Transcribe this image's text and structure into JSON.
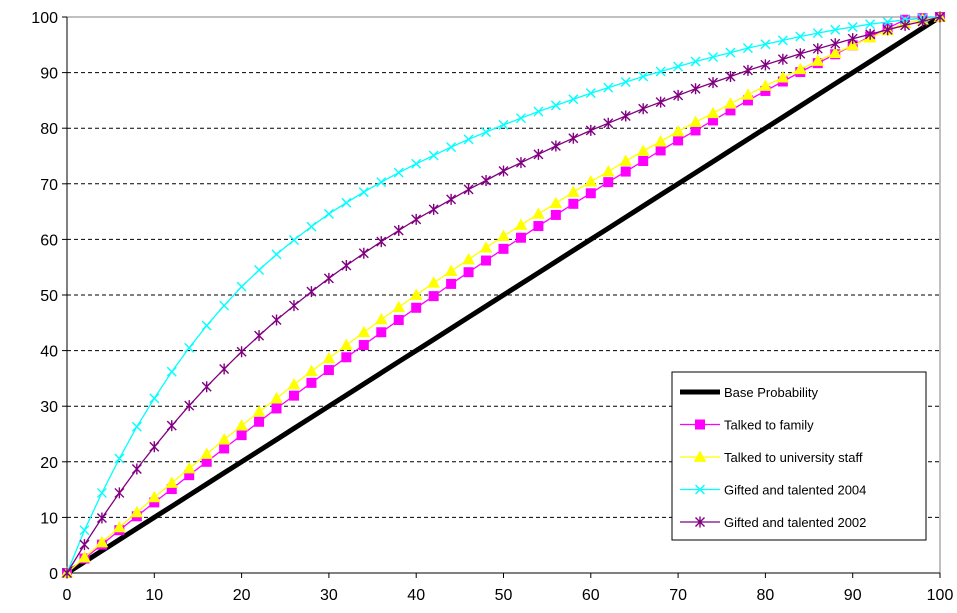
{
  "chart_data": {
    "type": "line",
    "title": "",
    "xlabel": "",
    "ylabel": "",
    "xlim": [
      0,
      100
    ],
    "ylim": [
      0,
      100
    ],
    "x_ticks": [
      0,
      10,
      20,
      30,
      40,
      50,
      60,
      70,
      80,
      90,
      100
    ],
    "y_ticks": [
      0,
      10,
      20,
      30,
      40,
      50,
      60,
      70,
      80,
      90,
      100
    ],
    "grid": "horizontal dashed",
    "legend_position": "bottom-right",
    "x": [
      0,
      2,
      4,
      6,
      8,
      10,
      12,
      14,
      16,
      18,
      20,
      22,
      24,
      26,
      28,
      30,
      32,
      34,
      36,
      38,
      40,
      42,
      44,
      46,
      48,
      50,
      52,
      54,
      56,
      58,
      60,
      62,
      64,
      66,
      68,
      70,
      72,
      74,
      76,
      78,
      80,
      82,
      84,
      86,
      88,
      90,
      92,
      94,
      96,
      98,
      100
    ],
    "series": [
      {
        "name": "Base Probability",
        "color": "#000000",
        "marker": "none",
        "values": [
          0,
          2,
          4,
          6,
          8,
          10,
          12,
          14,
          16,
          18,
          20,
          22,
          24,
          26,
          28,
          30,
          32,
          34,
          36,
          38,
          40,
          42,
          44,
          46,
          48,
          50,
          52,
          54,
          56,
          58,
          60,
          62,
          64,
          66,
          68,
          70,
          72,
          74,
          76,
          78,
          80,
          82,
          84,
          86,
          88,
          90,
          92,
          94,
          96,
          98,
          100
        ]
      },
      {
        "name": "Talked to family",
        "color": "#FF00FF",
        "marker": "square",
        "values": [
          0,
          2.6,
          5.1,
          7.7,
          10.2,
          12.7,
          15.1,
          17.6,
          20.0,
          22.4,
          24.8,
          27.2,
          29.6,
          31.9,
          34.2,
          36.5,
          38.8,
          41.0,
          43.3,
          45.5,
          47.7,
          49.8,
          52.0,
          54.1,
          56.2,
          58.3,
          60.3,
          62.4,
          64.4,
          66.4,
          68.3,
          70.3,
          72.2,
          74.1,
          76.0,
          77.8,
          79.6,
          81.4,
          83.2,
          85.0,
          86.7,
          88.4,
          90.1,
          91.7,
          93.3,
          94.9,
          96.5,
          98.0,
          99.5,
          99.8,
          100
        ]
      },
      {
        "name": "Talked to university staff",
        "color": "#FFFF00",
        "marker": "triangle",
        "values": [
          0,
          2.8,
          5.5,
          8.2,
          10.9,
          13.6,
          16.2,
          18.8,
          21.4,
          24.0,
          26.5,
          29.0,
          31.4,
          33.9,
          36.3,
          38.6,
          41.0,
          43.3,
          45.6,
          47.8,
          50.0,
          52.2,
          54.3,
          56.4,
          58.5,
          60.6,
          62.6,
          64.6,
          66.5,
          68.5,
          70.4,
          72.2,
          74.1,
          75.9,
          77.6,
          79.4,
          81.1,
          82.7,
          84.4,
          86.0,
          87.6,
          89.1,
          90.6,
          92.1,
          93.5,
          94.9,
          96.3,
          97.6,
          98.9,
          99.5,
          100
        ]
      },
      {
        "name": "Gifted and talented 2004",
        "color": "#00FFFF",
        "marker": "x",
        "values": [
          0,
          7.7,
          14.4,
          20.6,
          26.3,
          31.4,
          36.2,
          40.5,
          44.5,
          48.1,
          51.5,
          54.5,
          57.3,
          59.9,
          62.3,
          64.6,
          66.6,
          68.5,
          70.3,
          72.0,
          73.6,
          75.1,
          76.6,
          78.0,
          79.3,
          80.6,
          81.8,
          83.0,
          84.1,
          85.2,
          86.3,
          87.3,
          88.3,
          89.3,
          90.2,
          91.1,
          92.0,
          92.8,
          93.6,
          94.4,
          95.1,
          95.8,
          96.5,
          97.1,
          97.7,
          98.2,
          98.7,
          99.1,
          99.5,
          99.8,
          100
        ]
      },
      {
        "name": "Gifted and talented 2002",
        "color": "#800080",
        "marker": "star",
        "values": [
          0,
          5.1,
          9.9,
          14.4,
          18.7,
          22.7,
          26.5,
          30.1,
          33.5,
          36.7,
          39.8,
          42.7,
          45.5,
          48.1,
          50.6,
          53.0,
          55.3,
          57.5,
          59.6,
          61.6,
          63.6,
          65.4,
          67.2,
          69.0,
          70.6,
          72.3,
          73.8,
          75.3,
          76.8,
          78.2,
          79.6,
          80.9,
          82.2,
          83.5,
          84.7,
          85.9,
          87.1,
          88.2,
          89.3,
          90.4,
          91.4,
          92.4,
          93.4,
          94.3,
          95.2,
          96.1,
          96.9,
          97.7,
          98.5,
          99.2,
          100
        ]
      }
    ]
  }
}
